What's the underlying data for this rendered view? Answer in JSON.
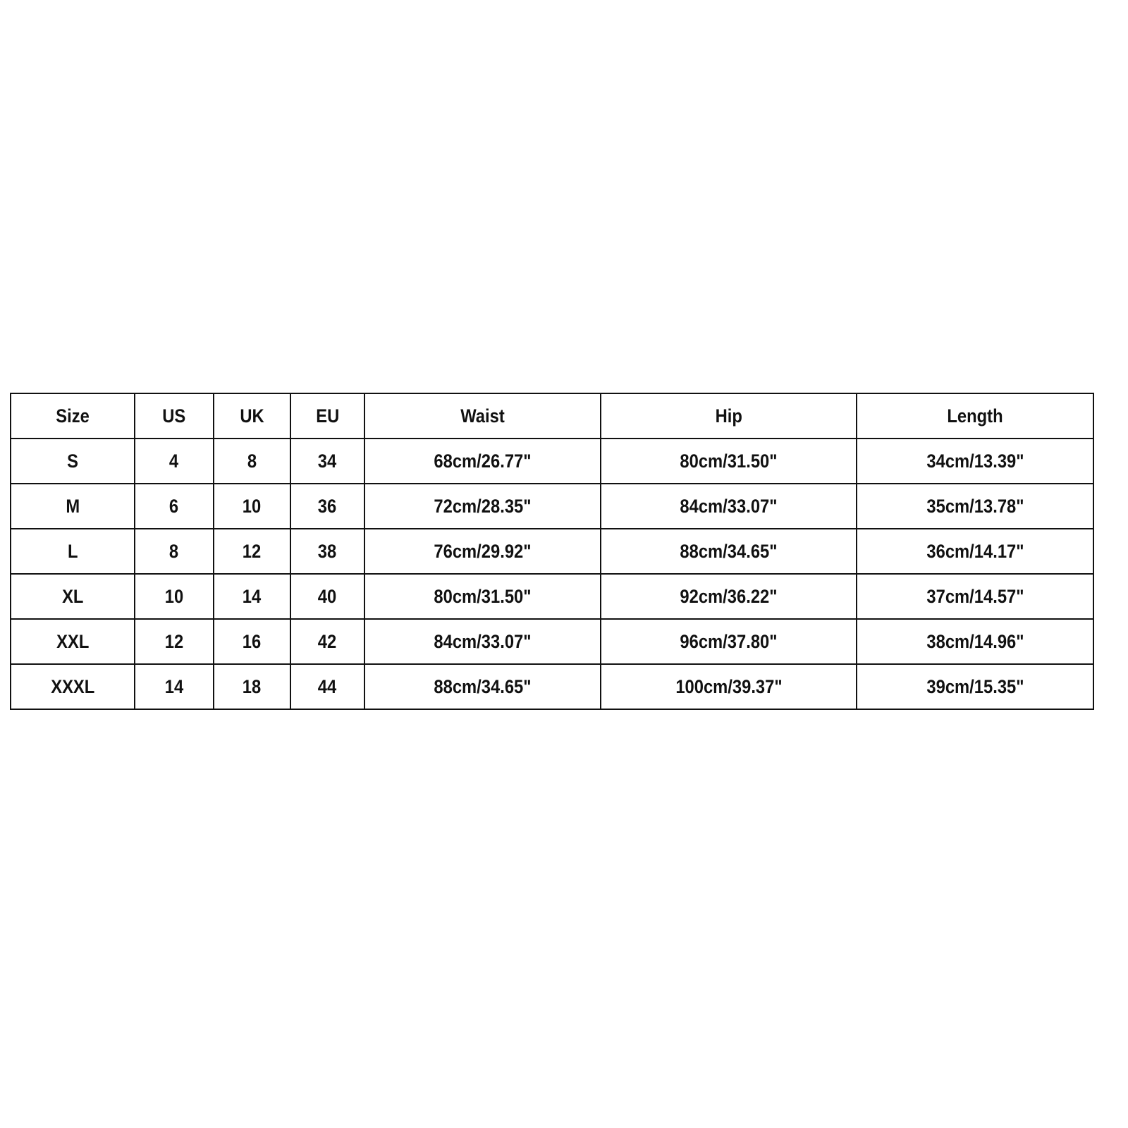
{
  "table": {
    "headers": [
      "Size",
      "US",
      "UK",
      "EU",
      "Waist",
      "Hip",
      "Length"
    ],
    "rows": [
      [
        "S",
        "4",
        "8",
        "34",
        "68cm/26.77\"",
        "80cm/31.50\"",
        "34cm/13.39\""
      ],
      [
        "M",
        "6",
        "10",
        "36",
        "72cm/28.35\"",
        "84cm/33.07\"",
        "35cm/13.78\""
      ],
      [
        "L",
        "8",
        "12",
        "38",
        "76cm/29.92\"",
        "88cm/34.65\"",
        "36cm/14.17\""
      ],
      [
        "XL",
        "10",
        "14",
        "40",
        "80cm/31.50\"",
        "92cm/36.22\"",
        "37cm/14.57\""
      ],
      [
        "XXL",
        "12",
        "16",
        "42",
        "84cm/33.07\"",
        "96cm/37.80\"",
        "38cm/14.96\""
      ],
      [
        "XXXL",
        "14",
        "18",
        "44",
        "88cm/34.65\"",
        "100cm/39.37\"",
        "39cm/15.35\""
      ]
    ]
  }
}
